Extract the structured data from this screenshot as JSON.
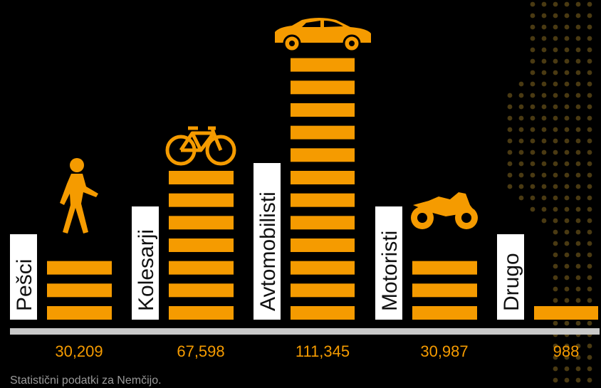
{
  "chart_data": {
    "type": "bar",
    "categories": [
      "Pešci",
      "Kolesarji",
      "Avtomobilisti",
      "Motoristi",
      "Drugo"
    ],
    "values": [
      30209,
      67598,
      111345,
      30987,
      988
    ],
    "value_labels": [
      "30,209",
      "67,598",
      "111,345",
      "30,987",
      "988"
    ],
    "icons": [
      "pedestrian-icon",
      "bicycle-icon",
      "car-icon",
      "motorcycle-icon",
      ""
    ],
    "bar_color": "#f59b00",
    "axis_color": "#c8c8c8",
    "background": "#000000",
    "grid": false,
    "legend": "none"
  },
  "footnote": "Statistični podatki za Nemčijo."
}
